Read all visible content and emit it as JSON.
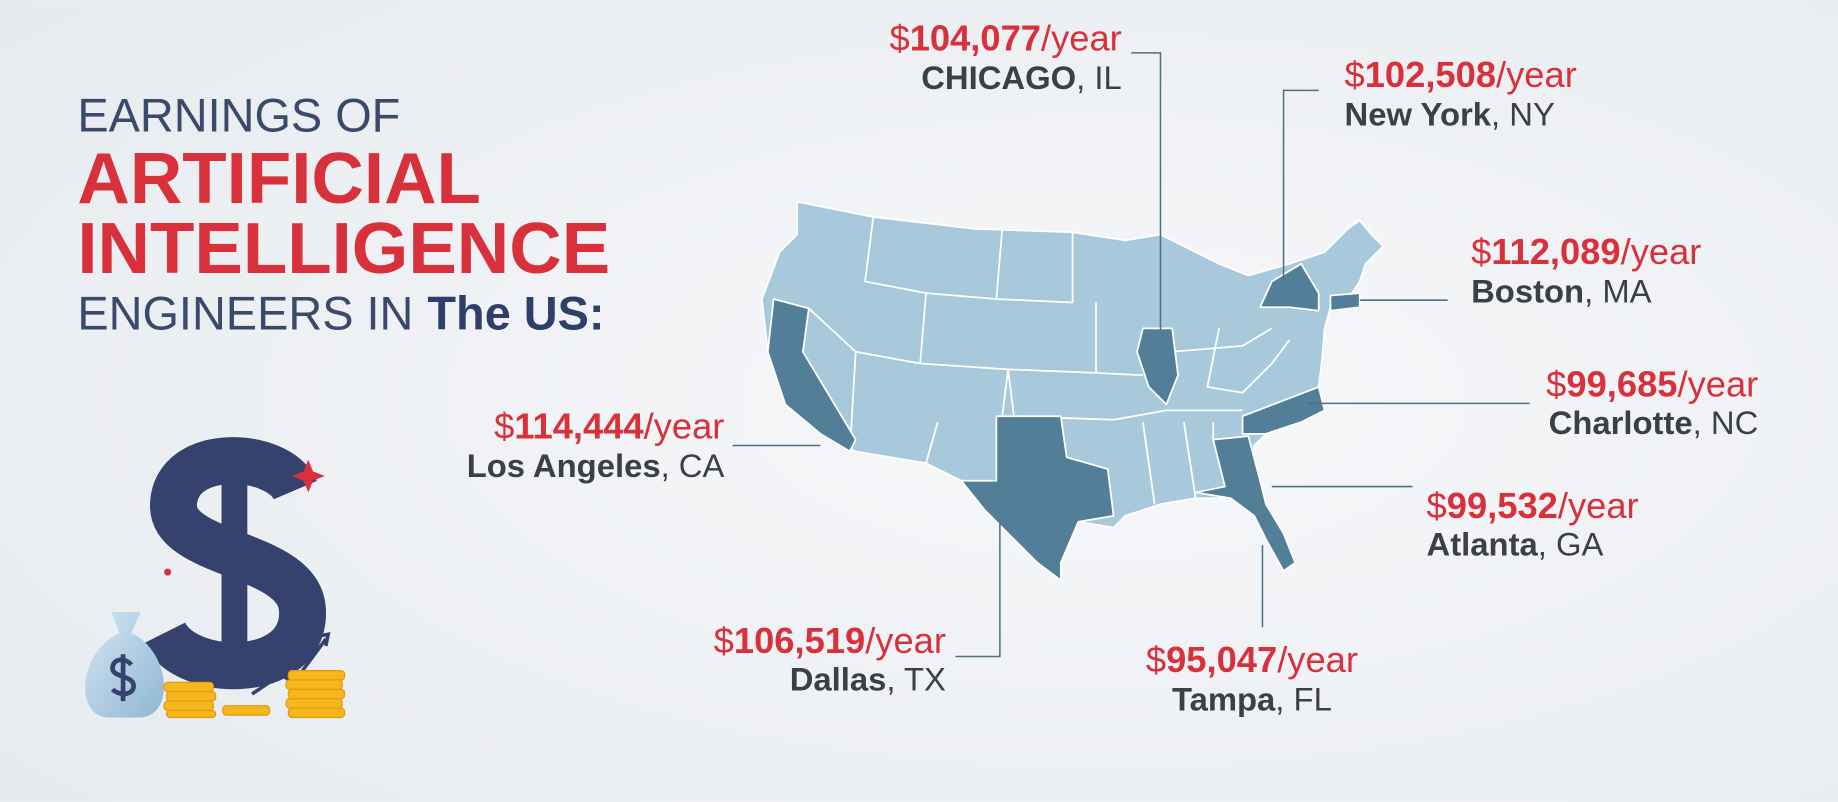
{
  "header": {
    "line1": "EARNINGS OF",
    "line2": "ARTIFICIAL",
    "line3": "INTELLIGENCE",
    "line4_prefix": "ENGINEERS IN",
    "line4_emphasis": "The US:"
  },
  "callouts": [
    {
      "currency": "$",
      "amount": "104,077",
      "unit": "/year",
      "city": "CHICAGO",
      "state": ", IL"
    },
    {
      "currency": "$",
      "amount": "102,508",
      "unit": "/year",
      "city": "New York",
      "state": ", NY"
    },
    {
      "currency": "$",
      "amount": "112,089",
      "unit": "/year",
      "city": "Boston",
      "state": ", MA"
    },
    {
      "currency": "$",
      "amount": "99,685",
      "unit": "/year",
      "city": "Charlotte",
      "state": ", NC"
    },
    {
      "currency": "$",
      "amount": "99,532",
      "unit": "/year",
      "city": "Atlanta",
      "state": ", GA"
    },
    {
      "currency": "$",
      "amount": "95,047",
      "unit": "/year",
      "city": "Tampa",
      "state": ", FL"
    },
    {
      "currency": "$",
      "amount": "106,519",
      "unit": "/year",
      "city": "Dallas",
      "state": ", TX"
    },
    {
      "currency": "$",
      "amount": "114,444",
      "unit": "/year",
      "city": "Los Angeles",
      "state": ", CA"
    }
  ]
}
